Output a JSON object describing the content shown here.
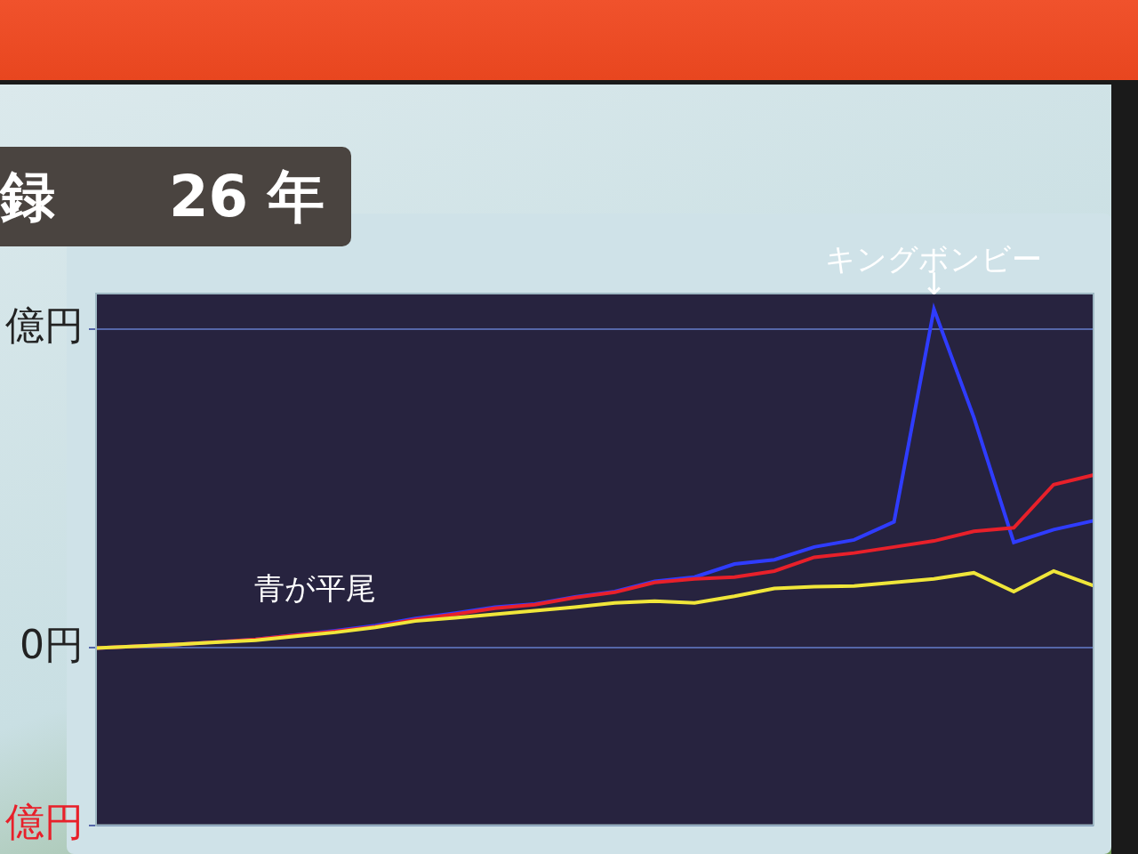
{
  "chart_data": {
    "type": "line",
    "title": "録",
    "subtitle": "26 年",
    "categories": [
      null,
      null,
      null,
      null,
      null,
      null,
      null,
      null,
      null,
      null,
      null,
      null,
      null,
      null,
      null,
      null,
      null,
      null,
      null,
      null,
      null,
      null,
      null,
      null,
      null,
      null
    ],
    "series": [
      {
        "color": "#f0e63a",
        "values": [
          0,
          0.05,
          0.1,
          0.16,
          0.22,
          0.33,
          0.44,
          0.58,
          0.76,
          0.85,
          0.95,
          1.05,
          1.15,
          1.27,
          1.32,
          1.27,
          1.46,
          1.68,
          1.73,
          1.75,
          1.85,
          1.95,
          2.12,
          1.59,
          2.17,
          1.76
        ]
      },
      {
        "color": "#e8202a",
        "values": [
          0,
          0.05,
          0.1,
          0.17,
          0.24,
          0.36,
          0.47,
          0.6,
          0.8,
          0.95,
          1.12,
          1.22,
          1.42,
          1.57,
          1.85,
          1.95,
          2.0,
          2.17,
          2.56,
          2.68,
          2.85,
          3.02,
          3.29,
          3.39,
          4.61,
          4.88
        ]
      },
      {
        "color": "#2f3cff",
        "values": [
          0,
          0.05,
          0.1,
          0.17,
          0.24,
          0.37,
          0.49,
          0.63,
          0.83,
          0.98,
          1.15,
          1.24,
          1.44,
          1.59,
          1.88,
          2.0,
          2.37,
          2.49,
          2.85,
          3.05,
          3.56,
          9.56,
          6.51,
          2.98,
          3.34,
          3.59
        ]
      }
    ],
    "ylim": [
      -5,
      10
    ],
    "yticks": [
      {
        "value": -5,
        "label": "億円"
      },
      {
        "value": 0,
        "label": "0円"
      },
      {
        "value": 9,
        "label": "億円"
      }
    ],
    "grid": true,
    "tick_labels": "y",
    "annotations": [
      {
        "text": "キングボンビー",
        "x": 21,
        "y": 10.9
      },
      {
        "text": "↓",
        "x": 21,
        "y": 10.2
      },
      {
        "text": "青が平尾",
        "x": 5.5,
        "y": 1.6
      }
    ]
  }
}
